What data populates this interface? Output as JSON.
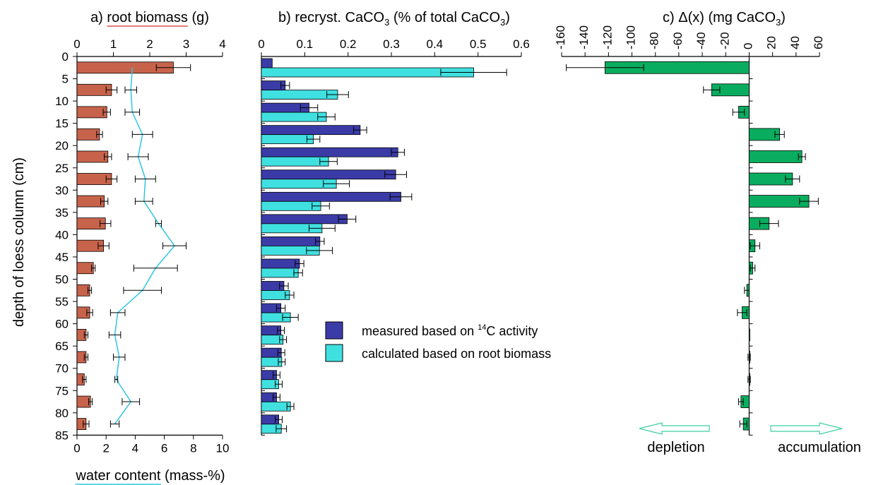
{
  "chart_data": [
    {
      "type": "bar",
      "title_prefix": "a)",
      "title_main": "root biomass",
      "title_unit": "(g)",
      "xlabel_main": "water content",
      "xlabel_unit": "(mass-%)",
      "ylabel": "depth of loess column (cm)",
      "depth_ticks": [
        "0",
        "5",
        "10",
        "15",
        "20",
        "25",
        "30",
        "35",
        "40",
        "45",
        "50",
        "55",
        "60",
        "65",
        "70",
        "75",
        "80",
        "85"
      ],
      "xlim_top": [
        0,
        4
      ],
      "top_ticks": [
        "0",
        "1",
        "2",
        "3",
        "4"
      ],
      "xlim_bottom": [
        0,
        10
      ],
      "bottom_ticks": [
        "0",
        "2",
        "4",
        "6",
        "8",
        "10"
      ],
      "depths": [
        2.5,
        7.5,
        12.5,
        17.5,
        22.5,
        27.5,
        32.5,
        37.5,
        42.5,
        47.5,
        52.5,
        57.5,
        62.5,
        67.5,
        72.5,
        77.5,
        82.5
      ],
      "series": [
        {
          "values": [
            2.65,
            0.95,
            0.82,
            0.62,
            0.85,
            0.95,
            0.75,
            0.78,
            0.73,
            0.45,
            0.35,
            0.35,
            0.25,
            0.25,
            0.2,
            0.37,
            0.25
          ],
          "errors": [
            0.47,
            0.15,
            0.1,
            0.08,
            0.1,
            0.15,
            0.1,
            0.15,
            0.15,
            0.05,
            0.05,
            0.08,
            0.05,
            0.05,
            0.05,
            0.05,
            0.08
          ]
        },
        {
          "values": [
            3.8,
            3.7,
            3.8,
            4.5,
            4.2,
            4.7,
            4.6,
            5.6,
            6.7,
            5.4,
            4.5,
            2.8,
            2.6,
            2.9,
            2.7,
            3.7,
            2.6
          ],
          "errors": [
            0,
            0.4,
            0.5,
            0.7,
            0.7,
            0.7,
            0.6,
            0.2,
            0.8,
            1.5,
            1.3,
            0.5,
            0.4,
            0.4,
            0.1,
            0.6,
            0.3
          ]
        }
      ],
      "colors": {
        "bar": "#c8634b",
        "line": "#2ec5e0",
        "title_underline": "#d9534f",
        "xlabel_underline": "#2ec5e0"
      }
    },
    {
      "type": "bar",
      "title": "b) recryst. CaCO",
      "title_sub": "3",
      "title_rest": " (% of total CaCO",
      "title_sub2": "3",
      "title_end": ")",
      "xlim": [
        0,
        0.6
      ],
      "top_ticks": [
        "0",
        "0.1",
        "0.2",
        "0.3",
        "0.4",
        "0.5",
        "0.6"
      ],
      "depths": [
        2.5,
        7.5,
        12.5,
        17.5,
        22.5,
        27.5,
        32.5,
        37.5,
        42.5,
        47.5,
        52.5,
        57.5,
        62.5,
        67.5,
        72.5,
        77.5,
        82.5
      ],
      "series": [
        {
          "name_pre": "measured based on ",
          "name_sup": "14",
          "name_post": "C activity",
          "values": [
            0.025,
            0.055,
            0.11,
            0.228,
            0.315,
            0.31,
            0.322,
            0.198,
            0.135,
            0.088,
            0.052,
            0.045,
            0.045,
            0.046,
            0.035,
            0.035,
            0.04
          ],
          "errors": [
            0,
            0.01,
            0.02,
            0.015,
            0.015,
            0.025,
            0.025,
            0.02,
            0.01,
            0.01,
            0.01,
            0.01,
            0.008,
            0.008,
            0.008,
            0.008,
            0.008
          ]
        },
        {
          "name": "calculated based on root biomass",
          "values": [
            0.49,
            0.176,
            0.15,
            0.12,
            0.155,
            0.173,
            0.137,
            0.14,
            0.134,
            0.085,
            0.065,
            0.067,
            0.05,
            0.047,
            0.04,
            0.067,
            0.046
          ],
          "errors": [
            0.076,
            0.025,
            0.02,
            0.015,
            0.02,
            0.03,
            0.02,
            0.03,
            0.03,
            0.01,
            0.01,
            0.018,
            0.008,
            0.008,
            0.008,
            0.008,
            0.012
          ]
        }
      ],
      "colors": {
        "measured": "#3b3ba8",
        "calculated": "#40e0e0"
      }
    },
    {
      "type": "bar",
      "title": "c) Δ(x) (mg CaCO",
      "title_sub": "3",
      "title_end": ")",
      "xlim": [
        -160,
        60
      ],
      "top_ticks": [
        "-160",
        "-140",
        "-120",
        "-100",
        "-80",
        "-60",
        "-40",
        "-20",
        "0",
        "20",
        "40",
        "60"
      ],
      "depths": [
        2.5,
        7.5,
        12.5,
        17.5,
        22.5,
        27.5,
        32.5,
        37.5,
        42.5,
        47.5,
        52.5,
        57.5,
        62.5,
        67.5,
        72.5,
        77.5,
        82.5
      ],
      "values": [
        -123,
        -32,
        -9,
        26,
        45,
        37,
        51,
        17,
        5,
        3,
        -2,
        -6,
        0,
        0,
        0,
        -7,
        -5
      ],
      "errors": [
        33,
        7,
        5,
        4,
        3,
        6,
        8,
        8,
        4,
        2,
        2,
        4,
        0,
        1,
        1,
        2,
        3
      ],
      "colors": {
        "bar": "#0aad5f",
        "arrow": "#3ccfa0"
      },
      "arrow_left_label": "depletion",
      "arrow_right_label": "accumulation"
    }
  ]
}
